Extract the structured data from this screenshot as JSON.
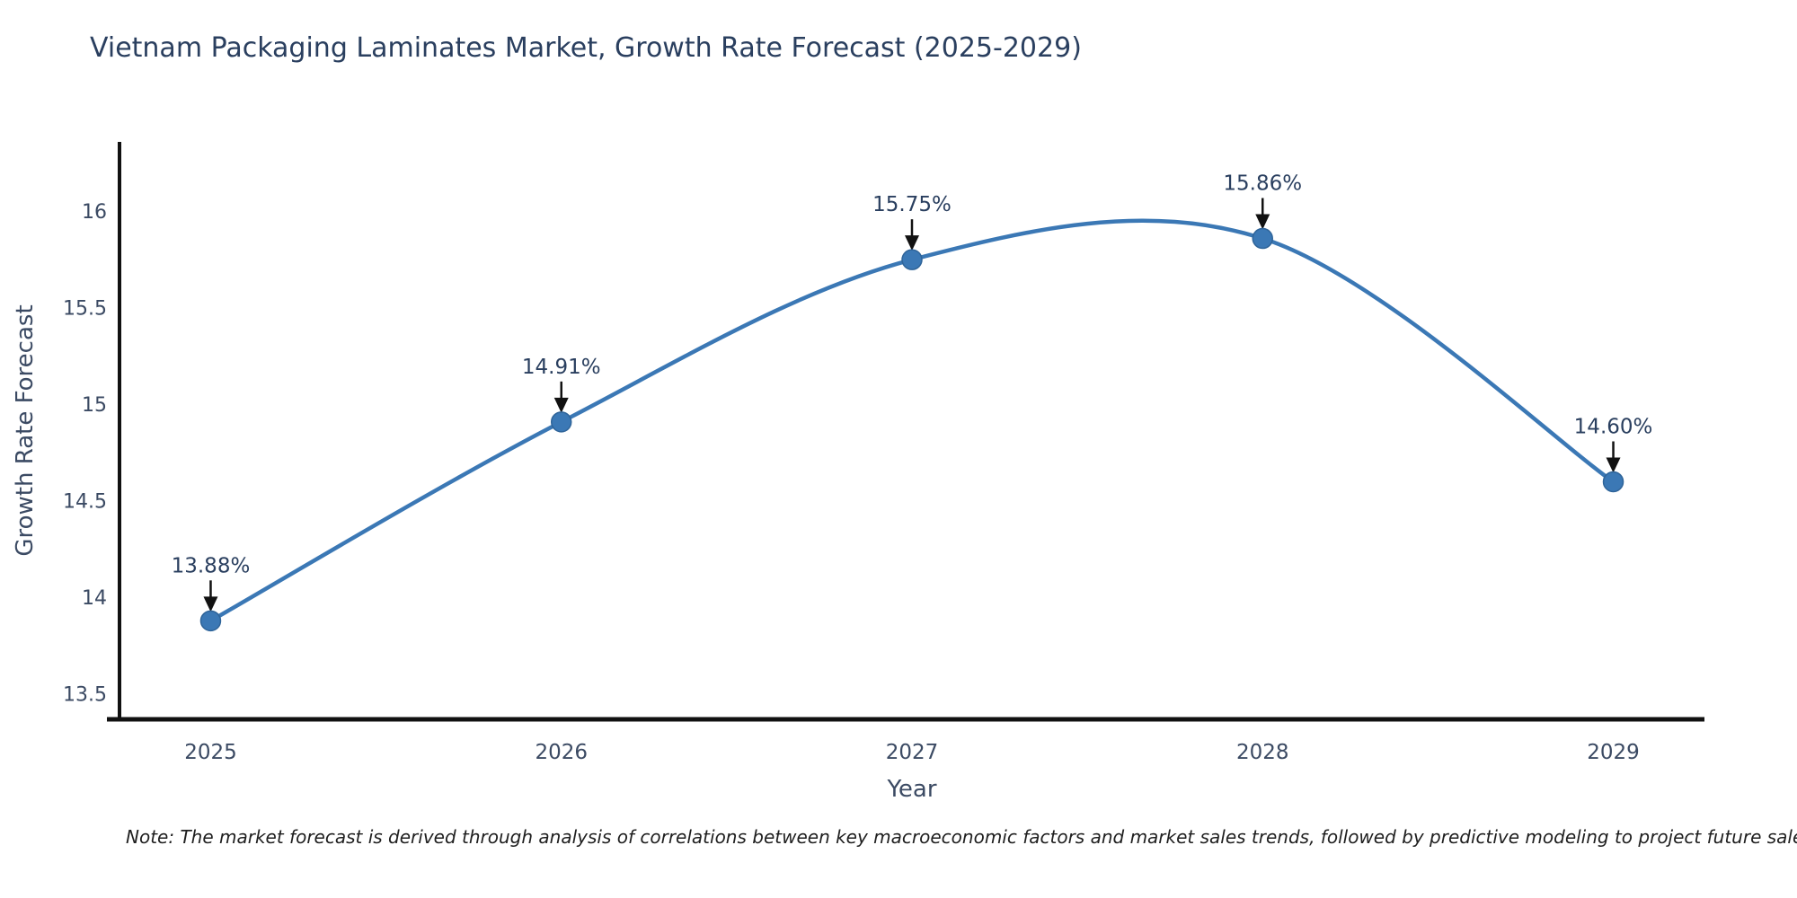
{
  "page": {
    "background": "#ffffff"
  },
  "title": {
    "text": "Vietnam Packaging Laminates Market, Growth Rate Forecast (2025-2029)",
    "color": "#2a3f5f"
  },
  "note": {
    "text": "Note: The market forecast is derived through analysis of correlations between key macroeconomic factors and market sales trends, followed by predictive modeling to project future sales"
  },
  "chart_data": {
    "type": "line",
    "title": "Vietnam Packaging Laminates Market, Growth Rate Forecast (2025-2029)",
    "xlabel": "Year",
    "ylabel": "Growth Rate Forecast",
    "x": [
      2025,
      2026,
      2027,
      2028,
      2029
    ],
    "series": [
      {
        "name": "Growth Rate Forecast",
        "values": [
          13.88,
          14.91,
          15.75,
          15.86,
          14.6
        ],
        "point_labels": [
          "13.88%",
          "14.91%",
          "15.75%",
          "15.86%",
          "14.60%"
        ]
      }
    ],
    "xticks": [
      2025,
      2026,
      2027,
      2028,
      2029
    ],
    "yticks": [
      13.5,
      14,
      14.5,
      15,
      15.5,
      16
    ],
    "xlim": [
      2024.74,
      2029.26
    ],
    "ylim": [
      13.37,
      16.36
    ],
    "grid": false,
    "line_shape": "spline",
    "legend": "none",
    "colors": {
      "line": "#3b78b5",
      "marker": "#3b78b5",
      "marker_edge": "#2f6499",
      "axis": "#111111",
      "tick_text": "#3b4a63",
      "axis_title_text": "#3b4a63",
      "annotation_text": "#2a3f5f",
      "arrow": "#111111"
    }
  }
}
